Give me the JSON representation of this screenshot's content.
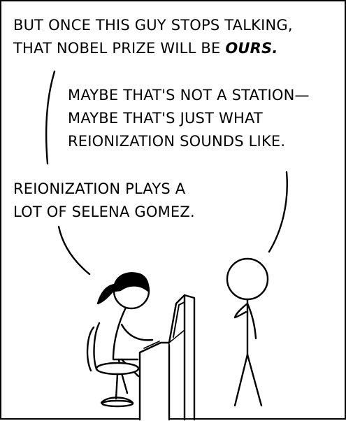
{
  "comic": {
    "dialogue": [
      {
        "lines": [
          "BUT ONCE THIS GUY STOPS TALKING,",
          "THAT NOBEL PRIZE WILL BE"
        ],
        "emphasis": "OURS."
      },
      {
        "lines": [
          "MAYBE THAT'S NOT A STATION—",
          "MAYBE THAT'S JUST WHAT",
          "REIONIZATION SOUNDS LIKE."
        ]
      },
      {
        "lines": [
          "REIONIZATION PLAYS A",
          "LOT OF SELENA GOMEZ."
        ]
      }
    ],
    "colors": {
      "ink": "#000000",
      "background": "#ffffff"
    }
  }
}
